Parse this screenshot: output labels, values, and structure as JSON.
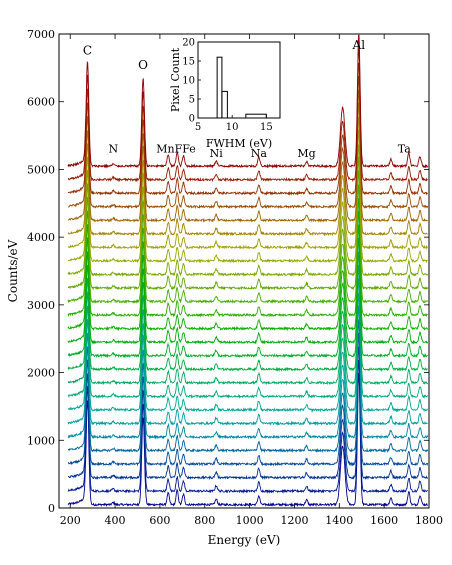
{
  "chart_data": [
    {
      "type": "line",
      "title": "",
      "xlabel": "Energy (eV)",
      "ylabel": "Counts/eV",
      "xlim": [
        150,
        1800
      ],
      "ylim": [
        0,
        7000
      ],
      "xticks": [
        200,
        400,
        600,
        800,
        1000,
        1200,
        1400,
        1600,
        1800
      ],
      "yticks": [
        0,
        1000,
        2000,
        3000,
        4000,
        5000,
        6000,
        7000
      ],
      "n_spectra": 26,
      "vertical_offset_per_spectrum": 200,
      "baseline": 50,
      "color_order": "blue (bottom) to red (top)",
      "peaks": [
        {
          "label": "C",
          "energy": 277,
          "height": 1550
        },
        {
          "label": "N",
          "energy": 392,
          "height": 30
        },
        {
          "label": "O",
          "energy": 525,
          "height": 1300
        },
        {
          "label": "Mn",
          "energy": 637,
          "height": 170
        },
        {
          "label": "F",
          "energy": 677,
          "height": 210
        },
        {
          "label": "Fe",
          "energy": 705,
          "height": 150
        },
        {
          "label": "Ni",
          "energy": 851,
          "height": 80
        },
        {
          "label": "Na",
          "energy": 1041,
          "height": 130
        },
        {
          "label": "Mg",
          "energy": 1254,
          "height": 70
        },
        {
          "label": "Al",
          "energy": 1487,
          "height": 1950
        },
        {
          "label": "Ta",
          "energy": 1710,
          "height": 190
        }
      ],
      "extra_features": [
        {
          "energy": 1415,
          "height": 860
        },
        {
          "energy": 1760,
          "height": 140
        },
        {
          "energy": 1630,
          "height": 100
        }
      ],
      "peak_labels": [
        "C",
        "N",
        "O",
        "Mn",
        "F",
        "Fe",
        "Ni",
        "Na",
        "Mg",
        "Al",
        "Ta"
      ],
      "peak_label_text": {
        "C": "C",
        "N": "N",
        "O": "O",
        "MnFFe": "MnFFe",
        "Ni": "Ni",
        "Na": "Na",
        "Mg": "Mg",
        "Al": "Al",
        "Ta": "Ta"
      }
    },
    {
      "type": "histogram",
      "title": "",
      "xlabel": "FWHM (eV)",
      "ylabel": "Pixel Count",
      "xlim": [
        5,
        17
      ],
      "ylim": [
        0,
        20
      ],
      "xticks": [
        5,
        10,
        15
      ],
      "yticks": [
        0,
        5,
        10,
        15,
        20
      ],
      "bins": [
        {
          "x0": 7.8,
          "x1": 8.5,
          "count": 16
        },
        {
          "x0": 8.5,
          "x1": 9.3,
          "count": 7
        },
        {
          "x0": 12.0,
          "x1": 15.0,
          "count": 1
        }
      ]
    }
  ]
}
